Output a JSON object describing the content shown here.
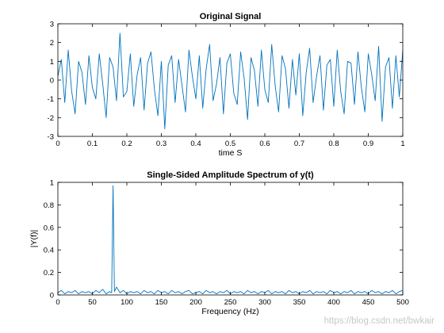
{
  "watermark": "https://blog.csdn.net/bwkair",
  "chart_data": [
    {
      "type": "line",
      "title": "Original Signal",
      "xlabel": "time S",
      "ylabel": "",
      "xlim": [
        0,
        1
      ],
      "ylim": [
        -3,
        3
      ],
      "xticks": [
        "0",
        "0.1",
        "0.2",
        "0.3",
        "0.4",
        "0.5",
        "0.6",
        "0.7",
        "0.8",
        "0.9",
        "1"
      ],
      "yticks": [
        "-3",
        "-2",
        "-1",
        "0",
        "1",
        "2",
        "3"
      ],
      "grid": false,
      "line_color": "#0072bd",
      "series": [
        {
          "name": "",
          "x": [
            0,
            0.01,
            0.02,
            0.03,
            0.04,
            0.05,
            0.06,
            0.07,
            0.08,
            0.09,
            0.1,
            0.11,
            0.12,
            0.13,
            0.14,
            0.15,
            0.16,
            0.17,
            0.18,
            0.19,
            0.2,
            0.21,
            0.22,
            0.23,
            0.24,
            0.25,
            0.26,
            0.27,
            0.28,
            0.29,
            0.3,
            0.31,
            0.32,
            0.33,
            0.34,
            0.35,
            0.36,
            0.37,
            0.38,
            0.39,
            0.4,
            0.41,
            0.42,
            0.43,
            0.44,
            0.45,
            0.46,
            0.47,
            0.48,
            0.49,
            0.5,
            0.51,
            0.52,
            0.53,
            0.54,
            0.55,
            0.56,
            0.57,
            0.58,
            0.59,
            0.6,
            0.61,
            0.62,
            0.63,
            0.64,
            0.65,
            0.66,
            0.67,
            0.68,
            0.69,
            0.7,
            0.71,
            0.72,
            0.73,
            0.74,
            0.75,
            0.76,
            0.77,
            0.78,
            0.79,
            0.8,
            0.81,
            0.82,
            0.83,
            0.84,
            0.85,
            0.86,
            0.87,
            0.88,
            0.89,
            0.9,
            0.91,
            0.92,
            0.93,
            0.94,
            0.95,
            0.96,
            0.97,
            0.98,
            0.99,
            1
          ],
          "values": [
            0.2,
            1.1,
            -1.2,
            1.6,
            -0.6,
            -1.8,
            1.0,
            0.4,
            -1.3,
            1.3,
            -0.4,
            -1.0,
            1.4,
            -0.2,
            -2.0,
            1.2,
            0.7,
            -1.1,
            2.5,
            -0.9,
            -0.6,
            1.4,
            -1.4,
            0.3,
            1.2,
            -1.6,
            0.9,
            1.5,
            -0.5,
            -1.9,
            1.0,
            -2.6,
            0.8,
            1.3,
            -1.2,
            1.1,
            -0.3,
            -1.7,
            1.6,
            0.2,
            -1.0,
            1.3,
            -1.5,
            0.6,
            1.9,
            -1.1,
            -0.2,
            1.2,
            -1.8,
            0.9,
            1.4,
            -0.7,
            -1.3,
            1.5,
            0.1,
            -2.1,
            1.2,
            0.5,
            -1.4,
            1.6,
            -0.5,
            -1.2,
            1.9,
            -0.3,
            -1.7,
            1.3,
            0.6,
            -1.5,
            1.1,
            -0.8,
            1.4,
            -1.9,
            0.4,
            1.7,
            -1.2,
            0.2,
            1.3,
            -1.6,
            0.8,
            1.1,
            -1.4,
            1.6,
            -0.6,
            -1.8,
            1.0,
            0.9,
            -1.3,
            1.5,
            -0.4,
            -1.7,
            1.4,
            0.3,
            -1.1,
            1.8,
            -2.2,
            0.7,
            1.2,
            -1.5,
            1.3,
            -0.9,
            1.6
          ]
        }
      ]
    },
    {
      "type": "line",
      "title": "Single-Sided Amplitude Spectrum of y(t)",
      "xlabel": "Frequency (Hz)",
      "ylabel": "|Y(f)|",
      "xlim": [
        0,
        500
      ],
      "ylim": [
        0,
        1
      ],
      "xticks": [
        "0",
        "50",
        "100",
        "150",
        "200",
        "250",
        "300",
        "350",
        "400",
        "450",
        "500"
      ],
      "yticks": [
        "0",
        "0.2",
        "0.4",
        "0.6",
        "0.8",
        "1"
      ],
      "grid": false,
      "line_color": "#0072bd",
      "series": [
        {
          "name": "",
          "x": [
            0,
            5,
            10,
            15,
            20,
            25,
            30,
            35,
            40,
            45,
            50,
            55,
            60,
            65,
            70,
            75,
            78,
            80,
            82,
            85,
            90,
            95,
            100,
            105,
            110,
            115,
            120,
            125,
            130,
            135,
            140,
            145,
            150,
            155,
            160,
            165,
            170,
            175,
            180,
            185,
            190,
            195,
            200,
            205,
            210,
            215,
            220,
            225,
            230,
            235,
            240,
            245,
            250,
            255,
            260,
            265,
            270,
            275,
            280,
            285,
            290,
            295,
            300,
            305,
            310,
            315,
            320,
            325,
            330,
            335,
            340,
            345,
            350,
            355,
            360,
            365,
            370,
            375,
            380,
            385,
            390,
            395,
            400,
            405,
            410,
            415,
            420,
            425,
            430,
            435,
            440,
            445,
            450,
            455,
            460,
            465,
            470,
            475,
            480,
            485,
            490,
            495,
            500
          ],
          "values": [
            0.02,
            0.04,
            0.01,
            0.03,
            0.02,
            0.04,
            0.01,
            0.03,
            0.02,
            0.03,
            0.01,
            0.04,
            0.02,
            0.05,
            0.01,
            0.03,
            0.02,
            0.97,
            0.03,
            0.07,
            0.02,
            0.04,
            0.01,
            0.03,
            0.02,
            0.03,
            0.01,
            0.04,
            0.02,
            0.03,
            0.01,
            0.04,
            0.02,
            0.03,
            0.01,
            0.04,
            0.02,
            0.03,
            0.01,
            0.03,
            0.04,
            0.01,
            0.02,
            0.03,
            0.01,
            0.04,
            0.02,
            0.03,
            0.01,
            0.03,
            0.02,
            0.04,
            0.01,
            0.03,
            0.02,
            0.03,
            0.01,
            0.04,
            0.02,
            0.03,
            0.01,
            0.03,
            0.02,
            0.04,
            0.01,
            0.03,
            0.02,
            0.03,
            0.01,
            0.04,
            0.02,
            0.03,
            0.01,
            0.03,
            0.02,
            0.04,
            0.01,
            0.03,
            0.02,
            0.03,
            0.01,
            0.04,
            0.02,
            0.03,
            0.01,
            0.03,
            0.02,
            0.04,
            0.01,
            0.03,
            0.02,
            0.03,
            0.01,
            0.04,
            0.02,
            0.03,
            0.01,
            0.03,
            0.02,
            0.04,
            0.01,
            0.03,
            0.04
          ]
        }
      ]
    }
  ]
}
